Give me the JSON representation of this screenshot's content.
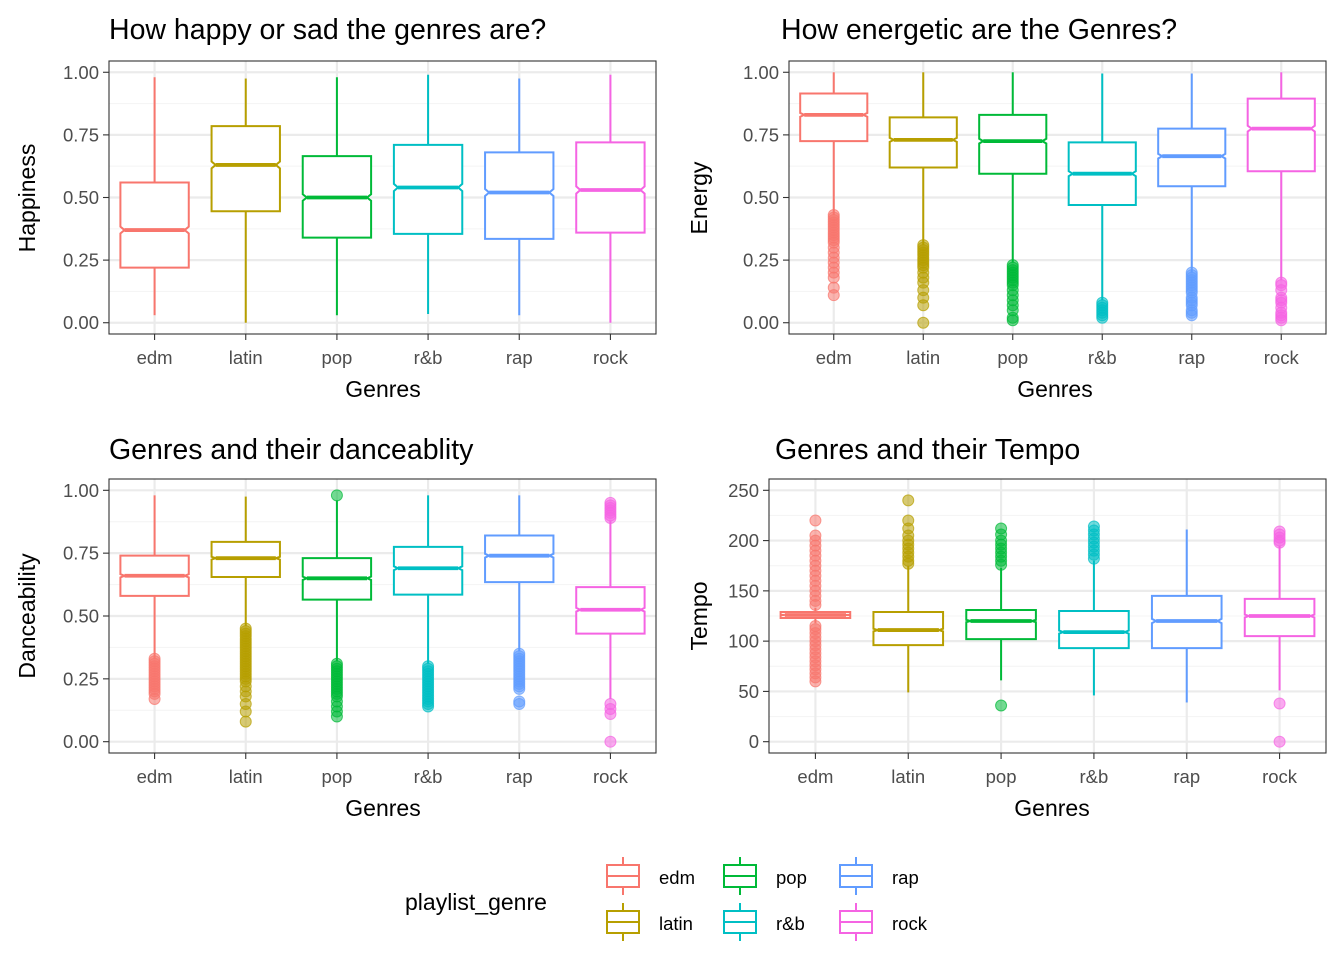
{
  "chart_data": [
    {
      "type": "box",
      "title": "How happy or sad the genres are?",
      "xlabel": "Genres",
      "ylabel": "Happiness",
      "ylim": [
        0,
        1
      ],
      "yticks": [
        0,
        0.25,
        0.5,
        0.75,
        1
      ],
      "ytick_labels": [
        "0.00",
        "0.25",
        "0.50",
        "0.75",
        "1.00"
      ],
      "categories": [
        "edm",
        "latin",
        "pop",
        "r&b",
        "rap",
        "rock"
      ],
      "boxes": [
        {
          "genre": "edm",
          "whisker_low": 0.03,
          "q1": 0.22,
          "median": 0.37,
          "q3": 0.56,
          "whisker_high": 0.98,
          "outliers": []
        },
        {
          "genre": "latin",
          "whisker_low": 0.0,
          "q1": 0.445,
          "median": 0.63,
          "q3": 0.785,
          "whisker_high": 0.975,
          "outliers": []
        },
        {
          "genre": "pop",
          "whisker_low": 0.03,
          "q1": 0.34,
          "median": 0.5,
          "q3": 0.665,
          "whisker_high": 0.98,
          "outliers": []
        },
        {
          "genre": "r&b",
          "whisker_low": 0.035,
          "q1": 0.355,
          "median": 0.54,
          "q3": 0.71,
          "whisker_high": 0.99,
          "outliers": []
        },
        {
          "genre": "rap",
          "whisker_low": 0.03,
          "q1": 0.335,
          "median": 0.52,
          "q3": 0.68,
          "whisker_high": 0.975,
          "outliers": []
        },
        {
          "genre": "rock",
          "whisker_low": 0.0,
          "q1": 0.36,
          "median": 0.53,
          "q3": 0.72,
          "whisker_high": 0.99,
          "outliers": []
        }
      ]
    },
    {
      "type": "box",
      "title": "How energetic are the Genres?",
      "xlabel": "Genres",
      "ylabel": "Energy",
      "ylim": [
        0,
        1
      ],
      "yticks": [
        0,
        0.25,
        0.5,
        0.75,
        1
      ],
      "ytick_labels": [
        "0.00",
        "0.25",
        "0.50",
        "0.75",
        "1.00"
      ],
      "categories": [
        "edm",
        "latin",
        "pop",
        "r&b",
        "rap",
        "rock"
      ],
      "boxes": [
        {
          "genre": "edm",
          "whisker_low": 0.43,
          "q1": 0.725,
          "median": 0.83,
          "q3": 0.915,
          "whisker_high": 1.0,
          "outliers": [
            0.43,
            0.42,
            0.41,
            0.4,
            0.39,
            0.38,
            0.37,
            0.36,
            0.35,
            0.34,
            0.33,
            0.32,
            0.3,
            0.28,
            0.26,
            0.24,
            0.22,
            0.2,
            0.18,
            0.14,
            0.11
          ]
        },
        {
          "genre": "latin",
          "whisker_low": 0.31,
          "q1": 0.62,
          "median": 0.73,
          "q3": 0.82,
          "whisker_high": 1.0,
          "outliers": [
            0.31,
            0.3,
            0.29,
            0.28,
            0.27,
            0.26,
            0.25,
            0.24,
            0.23,
            0.22,
            0.2,
            0.18,
            0.16,
            0.13,
            0.1,
            0.07,
            0.0
          ]
        },
        {
          "genre": "pop",
          "whisker_low": 0.24,
          "q1": 0.595,
          "median": 0.725,
          "q3": 0.83,
          "whisker_high": 1.0,
          "outliers": [
            0.23,
            0.22,
            0.21,
            0.2,
            0.19,
            0.18,
            0.17,
            0.16,
            0.15,
            0.13,
            0.11,
            0.09,
            0.07,
            0.05,
            0.02,
            0.01
          ]
        },
        {
          "genre": "r&b",
          "whisker_low": 0.09,
          "q1": 0.47,
          "median": 0.595,
          "q3": 0.72,
          "whisker_high": 0.995,
          "outliers": [
            0.08,
            0.07,
            0.06,
            0.05,
            0.04,
            0.03,
            0.02
          ]
        },
        {
          "genre": "rap",
          "whisker_low": 0.2,
          "q1": 0.545,
          "median": 0.665,
          "q3": 0.775,
          "whisker_high": 0.995,
          "outliers": [
            0.2,
            0.19,
            0.18,
            0.17,
            0.16,
            0.15,
            0.14,
            0.13,
            0.12,
            0.1,
            0.09,
            0.08,
            0.07,
            0.05,
            0.04,
            0.03
          ]
        },
        {
          "genre": "rock",
          "whisker_low": 0.17,
          "q1": 0.605,
          "median": 0.775,
          "q3": 0.895,
          "whisker_high": 1.0,
          "outliers": [
            0.16,
            0.15,
            0.13,
            0.1,
            0.09,
            0.08,
            0.06,
            0.04,
            0.03,
            0.02,
            0.01
          ]
        }
      ]
    },
    {
      "type": "box",
      "title": "Genres and their danceablity",
      "xlabel": "Genres",
      "ylabel": "Danceability",
      "ylim": [
        0,
        1
      ],
      "yticks": [
        0,
        0.25,
        0.5,
        0.75,
        1
      ],
      "ytick_labels": [
        "0.00",
        "0.25",
        "0.50",
        "0.75",
        "1.00"
      ],
      "categories": [
        "edm",
        "latin",
        "pop",
        "r&b",
        "rap",
        "rock"
      ],
      "boxes": [
        {
          "genre": "edm",
          "whisker_low": 0.33,
          "q1": 0.58,
          "median": 0.66,
          "q3": 0.74,
          "whisker_high": 0.98,
          "outliers": [
            0.33,
            0.32,
            0.31,
            0.3,
            0.29,
            0.28,
            0.27,
            0.26,
            0.25,
            0.24,
            0.23,
            0.22,
            0.21,
            0.2,
            0.19,
            0.17
          ]
        },
        {
          "genre": "latin",
          "whisker_low": 0.46,
          "q1": 0.655,
          "median": 0.73,
          "q3": 0.795,
          "whisker_high": 0.975,
          "outliers": [
            0.45,
            0.44,
            0.43,
            0.42,
            0.41,
            0.4,
            0.39,
            0.38,
            0.37,
            0.36,
            0.35,
            0.34,
            0.33,
            0.32,
            0.31,
            0.3,
            0.29,
            0.28,
            0.27,
            0.26,
            0.25,
            0.24,
            0.22,
            0.2,
            0.18,
            0.15,
            0.12,
            0.08
          ]
        },
        {
          "genre": "pop",
          "whisker_low": 0.32,
          "q1": 0.565,
          "median": 0.65,
          "q3": 0.73,
          "whisker_high": 0.96,
          "outliers": [
            0.98,
            0.31,
            0.3,
            0.29,
            0.28,
            0.27,
            0.26,
            0.25,
            0.24,
            0.23,
            0.22,
            0.21,
            0.2,
            0.19,
            0.18,
            0.16,
            0.14,
            0.12,
            0.1
          ]
        },
        {
          "genre": "r&b",
          "whisker_low": 0.31,
          "q1": 0.585,
          "median": 0.69,
          "q3": 0.775,
          "whisker_high": 0.98,
          "outliers": [
            0.3,
            0.29,
            0.28,
            0.27,
            0.26,
            0.25,
            0.24,
            0.23,
            0.22,
            0.21,
            0.2,
            0.19,
            0.18,
            0.17,
            0.16,
            0.15,
            0.14
          ]
        },
        {
          "genre": "rap",
          "whisker_low": 0.36,
          "q1": 0.635,
          "median": 0.74,
          "q3": 0.82,
          "whisker_high": 0.98,
          "outliers": [
            0.35,
            0.34,
            0.33,
            0.32,
            0.31,
            0.3,
            0.29,
            0.28,
            0.27,
            0.26,
            0.25,
            0.24,
            0.23,
            0.22,
            0.21,
            0.16,
            0.15
          ]
        },
        {
          "genre": "rock",
          "whisker_low": 0.17,
          "q1": 0.43,
          "median": 0.525,
          "q3": 0.615,
          "whisker_high": 0.88,
          "outliers": [
            0.95,
            0.94,
            0.93,
            0.92,
            0.91,
            0.9,
            0.89,
            0.15,
            0.13,
            0.11,
            0.0
          ]
        }
      ]
    },
    {
      "type": "box",
      "title": "Genres and their Tempo",
      "xlabel": "Genres",
      "ylabel": "Tempo",
      "ylim": [
        0,
        250
      ],
      "yticks": [
        0,
        50,
        100,
        150,
        200,
        250
      ],
      "ytick_labels": [
        "0",
        "50",
        "100",
        "150",
        "200",
        "250"
      ],
      "categories": [
        "edm",
        "latin",
        "pop",
        "r&b",
        "rap",
        "rock"
      ],
      "boxes": [
        {
          "genre": "edm",
          "whisker_low": 118,
          "q1": 123,
          "median": 126,
          "q3": 129,
          "whisker_high": 133,
          "outliers": [
            220,
            205,
            200,
            195,
            190,
            185,
            180,
            175,
            170,
            165,
            160,
            155,
            150,
            145,
            140,
            136,
            115,
            112,
            108,
            104,
            100,
            96,
            92,
            88,
            84,
            80,
            76,
            72,
            68,
            64,
            60
          ]
        },
        {
          "genre": "latin",
          "whisker_low": 49,
          "q1": 96,
          "median": 111,
          "q3": 129,
          "whisker_high": 175,
          "outliers": [
            240,
            220,
            212,
            205,
            200,
            196,
            192,
            188,
            184,
            180,
            177
          ]
        },
        {
          "genre": "pop",
          "whisker_low": 61,
          "q1": 102,
          "median": 120,
          "q3": 131,
          "whisker_high": 173,
          "outliers": [
            212,
            206,
            200,
            196,
            192,
            188,
            184,
            180,
            176,
            36
          ]
        },
        {
          "genre": "r&b",
          "whisker_low": 46,
          "q1": 93,
          "median": 109,
          "q3": 130,
          "whisker_high": 180,
          "outliers": [
            214,
            210,
            206,
            202,
            198,
            194,
            190,
            186,
            182
          ]
        },
        {
          "genre": "rap",
          "whisker_low": 39,
          "q1": 93,
          "median": 120,
          "q3": 145,
          "whisker_high": 211,
          "outliers": []
        },
        {
          "genre": "rock",
          "whisker_low": 51,
          "q1": 105,
          "median": 125,
          "q3": 142,
          "whisker_high": 195,
          "outliers": [
            209,
            206,
            203,
            200,
            198,
            38,
            0
          ]
        }
      ]
    }
  ],
  "legend": {
    "title": "playlist_genre",
    "position": "bottom",
    "items": [
      {
        "label": "edm",
        "color": "#F8766D"
      },
      {
        "label": "latin",
        "color": "#B79F00"
      },
      {
        "label": "pop",
        "color": "#00BA38"
      },
      {
        "label": "r&b",
        "color": "#00BFC4"
      },
      {
        "label": "rap",
        "color": "#619CFF"
      },
      {
        "label": "rock",
        "color": "#F564E3"
      }
    ]
  },
  "colors": {
    "edm": "#F8766D",
    "latin": "#B79F00",
    "pop": "#00BA38",
    "r&b": "#00BFC4",
    "rap": "#619CFF",
    "rock": "#F564E3",
    "grid_major": "#EBEBEB",
    "grid_minor": "#F5F5F5",
    "panel_border": "#333333",
    "axis_text": "#4D4D4D"
  }
}
